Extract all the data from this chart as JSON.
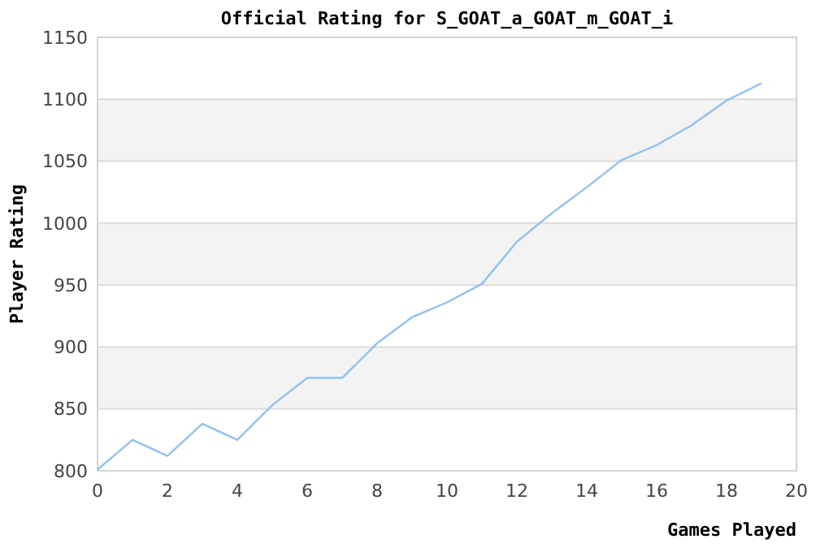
{
  "chart_data": {
    "type": "line",
    "title": "Official Rating for S_GOAT_a_GOAT_m_GOAT_i",
    "xlabel": "Games Played",
    "ylabel": "Player Rating",
    "x": [
      0,
      1,
      2,
      3,
      4,
      5,
      6,
      7,
      8,
      9,
      10,
      11,
      12,
      13,
      14,
      15,
      16,
      17,
      18,
      19
    ],
    "series": [
      {
        "color": "#8fc1f2",
        "values": [
          801,
          825,
          812,
          838,
          825,
          853,
          875,
          875,
          903,
          924,
          936,
          951,
          985,
          1008,
          1029,
          1051,
          1063,
          1079,
          1099,
          1113
        ]
      }
    ],
    "xlim": [
      0,
      20
    ],
    "xticks": [
      0,
      2,
      4,
      6,
      8,
      10,
      12,
      14,
      16,
      18,
      20
    ],
    "ylim": [
      800,
      1150
    ],
    "yticks": [
      800,
      850,
      900,
      950,
      1000,
      1050,
      1100,
      1150
    ],
    "grid": "y",
    "marker": "none",
    "line_style": "solid"
  }
}
